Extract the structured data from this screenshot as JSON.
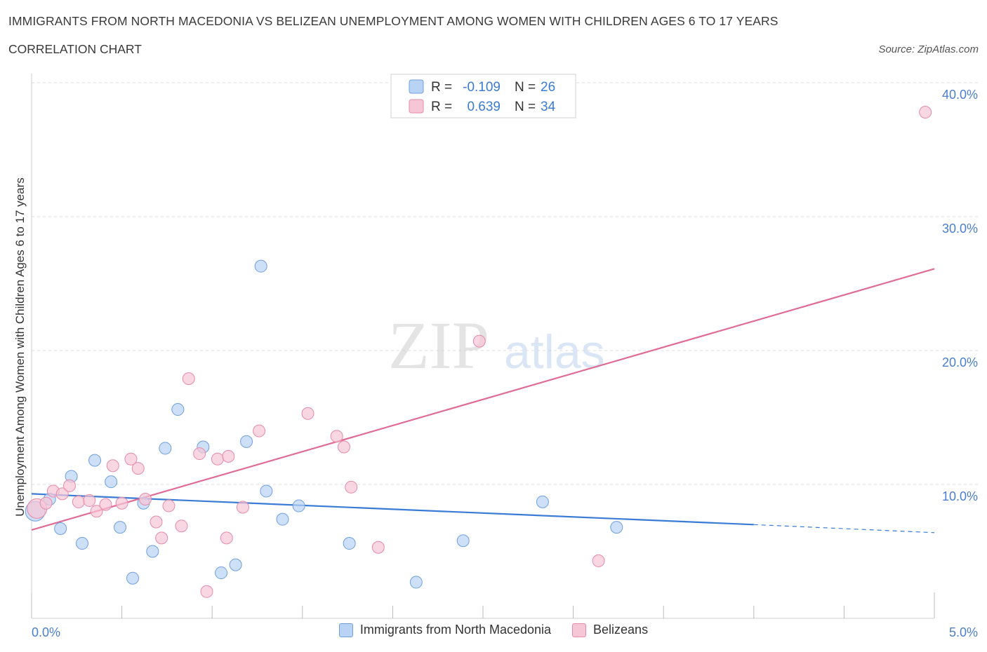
{
  "header": {
    "title": "IMMIGRANTS FROM NORTH MACEDONIA VS BELIZEAN UNEMPLOYMENT AMONG WOMEN WITH CHILDREN AGES 6 TO 17 YEARS",
    "subtitle": "CORRELATION CHART",
    "source": "Source: ZipAtlas.com"
  },
  "watermark": {
    "zip": "ZIP",
    "atlas": "atlas"
  },
  "colors": {
    "blue_fill": "#b9d3f5",
    "blue_stroke": "#6f9fe0",
    "blue_line": "#3a7bd5",
    "pink_fill": "#f7c6d6",
    "pink_stroke": "#e68aa8",
    "pink_line": "#e06c94",
    "tick_text": "#4a7fcf",
    "grid": "#dddddd"
  },
  "stats_box": {
    "rows": [
      {
        "r_label": "R =",
        "r_value": "-0.109",
        "n_label": "N =",
        "n_value": "26",
        "series": "blue"
      },
      {
        "r_label": "R =",
        "r_value": "0.639",
        "n_label": "N =",
        "n_value": "34",
        "series": "pink"
      }
    ]
  },
  "legend": {
    "items": [
      {
        "label": "Immigrants from North Macedonia",
        "series": "blue"
      },
      {
        "label": "Belizeans",
        "series": "pink"
      }
    ]
  },
  "chart_data": {
    "type": "scatter",
    "title": "IMMIGRANTS FROM NORTH MACEDONIA VS BELIZEAN UNEMPLOYMENT AMONG WOMEN WITH CHILDREN AGES 6 TO 17 YEARS",
    "subtitle": "CORRELATION CHART",
    "xlabel": "",
    "ylabel": "Unemployment Among Women with Children Ages 6 to 17 years",
    "xlim": [
      0,
      5
    ],
    "ylim": [
      0,
      40
    ],
    "x_tick_labels": [
      "0.0%",
      "5.0%"
    ],
    "y_tick_labels": [
      "10.0%",
      "20.0%",
      "30.0%",
      "40.0%"
    ],
    "y_ticks": [
      10,
      20,
      30,
      40
    ],
    "grid": true,
    "legend_position": "bottom",
    "series": [
      {
        "name": "Immigrants from North Macedonia",
        "color": "#6f9fe0",
        "R": -0.109,
        "N": 26,
        "trend": {
          "x0": 0.0,
          "y0": 9.3,
          "x1": 4.0,
          "y1": 7.0,
          "dashed_to_x": 5.0,
          "dashed_to_y": 6.4
        },
        "points": [
          {
            "x": 0.02,
            "y": 8.0,
            "size": "large"
          },
          {
            "x": 0.1,
            "y": 8.9
          },
          {
            "x": 0.16,
            "y": 6.7
          },
          {
            "x": 0.22,
            "y": 10.6
          },
          {
            "x": 0.28,
            "y": 5.6
          },
          {
            "x": 0.35,
            "y": 11.8
          },
          {
            "x": 0.44,
            "y": 10.2
          },
          {
            "x": 0.49,
            "y": 6.8
          },
          {
            "x": 0.56,
            "y": 3.0
          },
          {
            "x": 0.62,
            "y": 8.6
          },
          {
            "x": 0.67,
            "y": 5.0
          },
          {
            "x": 0.74,
            "y": 12.7
          },
          {
            "x": 0.81,
            "y": 15.6
          },
          {
            "x": 0.95,
            "y": 12.8
          },
          {
            "x": 1.05,
            "y": 3.4
          },
          {
            "x": 1.13,
            "y": 4.0
          },
          {
            "x": 1.19,
            "y": 13.2
          },
          {
            "x": 1.27,
            "y": 26.3
          },
          {
            "x": 1.3,
            "y": 9.5
          },
          {
            "x": 1.39,
            "y": 7.4
          },
          {
            "x": 1.48,
            "y": 8.4
          },
          {
            "x": 1.76,
            "y": 5.6
          },
          {
            "x": 2.13,
            "y": 2.7
          },
          {
            "x": 2.39,
            "y": 5.8
          },
          {
            "x": 2.83,
            "y": 8.7
          },
          {
            "x": 3.24,
            "y": 6.8
          }
        ]
      },
      {
        "name": "Belizeans",
        "color": "#e68aa8",
        "R": 0.639,
        "N": 34,
        "trend": {
          "x0": 0.0,
          "y0": 6.6,
          "x1": 5.0,
          "y1": 26.1
        },
        "points": [
          {
            "x": 0.03,
            "y": 8.2,
            "size": "large"
          },
          {
            "x": 0.08,
            "y": 8.6
          },
          {
            "x": 0.12,
            "y": 9.5
          },
          {
            "x": 0.17,
            "y": 9.3
          },
          {
            "x": 0.21,
            "y": 9.9
          },
          {
            "x": 0.26,
            "y": 8.7
          },
          {
            "x": 0.32,
            "y": 8.8
          },
          {
            "x": 0.36,
            "y": 8.0
          },
          {
            "x": 0.41,
            "y": 8.5
          },
          {
            "x": 0.45,
            "y": 11.4
          },
          {
            "x": 0.5,
            "y": 8.6
          },
          {
            "x": 0.55,
            "y": 11.9
          },
          {
            "x": 0.59,
            "y": 11.2
          },
          {
            "x": 0.63,
            "y": 8.9
          },
          {
            "x": 0.69,
            "y": 7.2
          },
          {
            "x": 0.72,
            "y": 6.0
          },
          {
            "x": 0.76,
            "y": 8.4
          },
          {
            "x": 0.83,
            "y": 6.9
          },
          {
            "x": 0.87,
            "y": 17.9
          },
          {
            "x": 0.93,
            "y": 12.3
          },
          {
            "x": 0.97,
            "y": 2.0
          },
          {
            "x": 1.03,
            "y": 11.9
          },
          {
            "x": 1.08,
            "y": 6.0
          },
          {
            "x": 1.09,
            "y": 12.1
          },
          {
            "x": 1.17,
            "y": 8.3
          },
          {
            "x": 1.26,
            "y": 14.0
          },
          {
            "x": 1.53,
            "y": 15.3
          },
          {
            "x": 1.69,
            "y": 13.6
          },
          {
            "x": 1.73,
            "y": 12.8
          },
          {
            "x": 1.77,
            "y": 9.8
          },
          {
            "x": 1.92,
            "y": 5.3
          },
          {
            "x": 2.48,
            "y": 20.7
          },
          {
            "x": 3.14,
            "y": 4.3
          },
          {
            "x": 4.95,
            "y": 37.8
          }
        ]
      }
    ]
  }
}
